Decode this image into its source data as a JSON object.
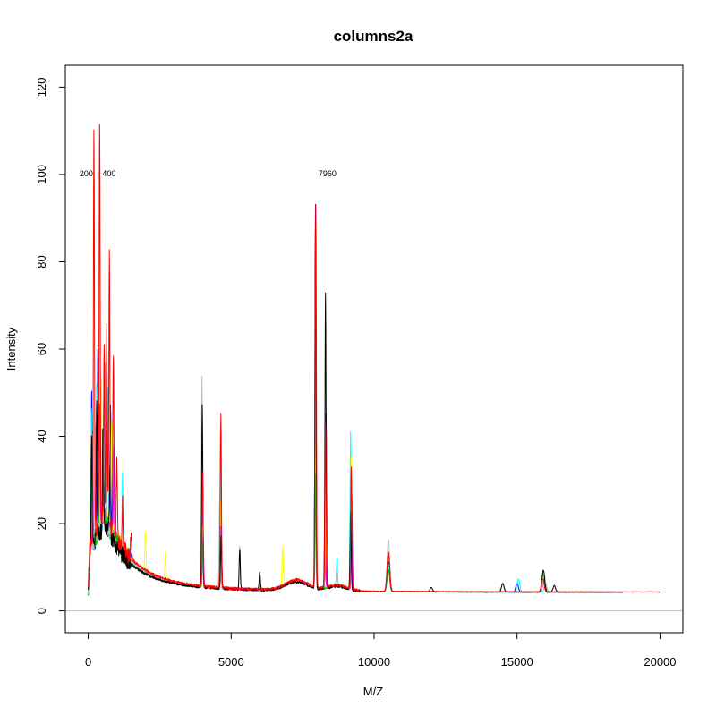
{
  "chart_data": {
    "type": "line",
    "title": "columns2a",
    "xlabel": "M/Z",
    "ylabel": "Intensity",
    "xlim": [
      -800,
      20800
    ],
    "ylim": [
      -5,
      125
    ],
    "x_ticks": [
      0,
      5000,
      10000,
      15000,
      20000
    ],
    "x_tick_labels": [
      "0",
      "5000",
      "10000",
      "15000",
      "20000"
    ],
    "y_ticks": [
      0,
      20,
      40,
      60,
      80,
      100,
      120
    ],
    "y_tick_labels": [
      "0",
      "20",
      "40",
      "60",
      "80",
      "100",
      "120"
    ],
    "grid": false,
    "legend": false,
    "reference_line_y": 0,
    "reference_line_color": "#c0c0c0",
    "peak_labels": [
      {
        "x": 200,
        "y": 100,
        "text": "200",
        "anchor": "end"
      },
      {
        "x": 400,
        "y": 100,
        "text": "400",
        "anchor": "start"
      },
      {
        "x": 7960,
        "y": 100,
        "text": "7960",
        "anchor": "start"
      }
    ],
    "series": [
      {
        "color": "#0000ff",
        "x_end": 18400,
        "scale": 0.97,
        "peaks": [
          [
            120,
            34
          ],
          [
            340,
            45
          ],
          [
            560,
            38
          ],
          [
            780,
            30
          ],
          [
            4000,
            18
          ],
          [
            4650,
            14
          ],
          [
            7950,
            88
          ],
          [
            8320,
            40
          ],
          [
            9180,
            14
          ],
          [
            10500,
            7
          ],
          [
            15000,
            2
          ],
          [
            15900,
            3
          ]
        ]
      },
      {
        "color": "#00ffff",
        "x_end": 18600,
        "scale": 1.04,
        "peaks": [
          [
            110,
            30
          ],
          [
            300,
            36
          ],
          [
            700,
            32
          ],
          [
            1200,
            16
          ],
          [
            4000,
            12
          ],
          [
            4630,
            38
          ],
          [
            7950,
            40
          ],
          [
            8280,
            18
          ],
          [
            8700,
            6
          ],
          [
            9180,
            36
          ],
          [
            10500,
            6
          ],
          [
            14500,
            2
          ],
          [
            15050,
            3
          ],
          [
            16000,
            2
          ]
        ]
      },
      {
        "color": "#ffff00",
        "x_end": 17900,
        "scale": 1.1,
        "peaks": [
          [
            120,
            26
          ],
          [
            460,
            32
          ],
          [
            820,
            24
          ],
          [
            2000,
            9
          ],
          [
            2700,
            6
          ],
          [
            4000,
            14
          ],
          [
            4630,
            20
          ],
          [
            6800,
            9
          ],
          [
            7940,
            34
          ],
          [
            8300,
            14
          ],
          [
            9200,
            30
          ],
          [
            10500,
            8
          ],
          [
            15900,
            3
          ]
        ]
      },
      {
        "color": "#ff00ff",
        "x_end": 18000,
        "scale": 1.05,
        "peaks": [
          [
            150,
            24
          ],
          [
            400,
            30
          ],
          [
            900,
            20
          ],
          [
            4020,
            12
          ],
          [
            4640,
            14
          ],
          [
            7950,
            24
          ],
          [
            8280,
            12
          ],
          [
            9220,
            22
          ],
          [
            10500,
            5
          ],
          [
            15950,
            3
          ]
        ]
      },
      {
        "color": "#00cd00",
        "x_end": 18200,
        "scale": 1.0,
        "peaks": [
          [
            130,
            22
          ],
          [
            420,
            28
          ],
          [
            4010,
            10
          ],
          [
            4640,
            10
          ],
          [
            7960,
            26
          ],
          [
            9200,
            18
          ],
          [
            10500,
            5
          ],
          [
            15900,
            4
          ]
        ]
      },
      {
        "color": "#bebebe",
        "x_end": 17000,
        "scale": 1.0,
        "peaks": [
          [
            250,
            28
          ],
          [
            600,
            34
          ],
          [
            3980,
            48
          ],
          [
            4600,
            20
          ],
          [
            5300,
            10
          ],
          [
            7950,
            58
          ],
          [
            8320,
            36
          ],
          [
            9200,
            22
          ],
          [
            10500,
            12
          ],
          [
            15950,
            4
          ]
        ]
      },
      {
        "color": "#000000",
        "x_end": 18700,
        "scale": 0.92,
        "peaks": [
          [
            120,
            28
          ],
          [
            300,
            33
          ],
          [
            520,
            22
          ],
          [
            760,
            16
          ],
          [
            3990,
            42
          ],
          [
            4650,
            12
          ],
          [
            5300,
            9
          ],
          [
            6000,
            4
          ],
          [
            7950,
            83
          ],
          [
            8300,
            68
          ],
          [
            9180,
            18
          ],
          [
            10500,
            9
          ],
          [
            12000,
            1
          ],
          [
            14500,
            2
          ],
          [
            15920,
            5
          ],
          [
            16300,
            1.5
          ]
        ]
      },
      {
        "color": "#ff0000",
        "x_end": 20000,
        "scale": 1.1,
        "peaks": [
          [
            200,
            92
          ],
          [
            400,
            92
          ],
          [
            560,
            38
          ],
          [
            650,
            44
          ],
          [
            740,
            62
          ],
          [
            880,
            42
          ],
          [
            1000,
            18
          ],
          [
            1200,
            10
          ],
          [
            1500,
            6
          ],
          [
            4000,
            26
          ],
          [
            4640,
            40
          ],
          [
            7960,
            88
          ],
          [
            8300,
            38
          ],
          [
            9200,
            28
          ],
          [
            10500,
            9
          ],
          [
            15900,
            3
          ]
        ]
      }
    ]
  }
}
